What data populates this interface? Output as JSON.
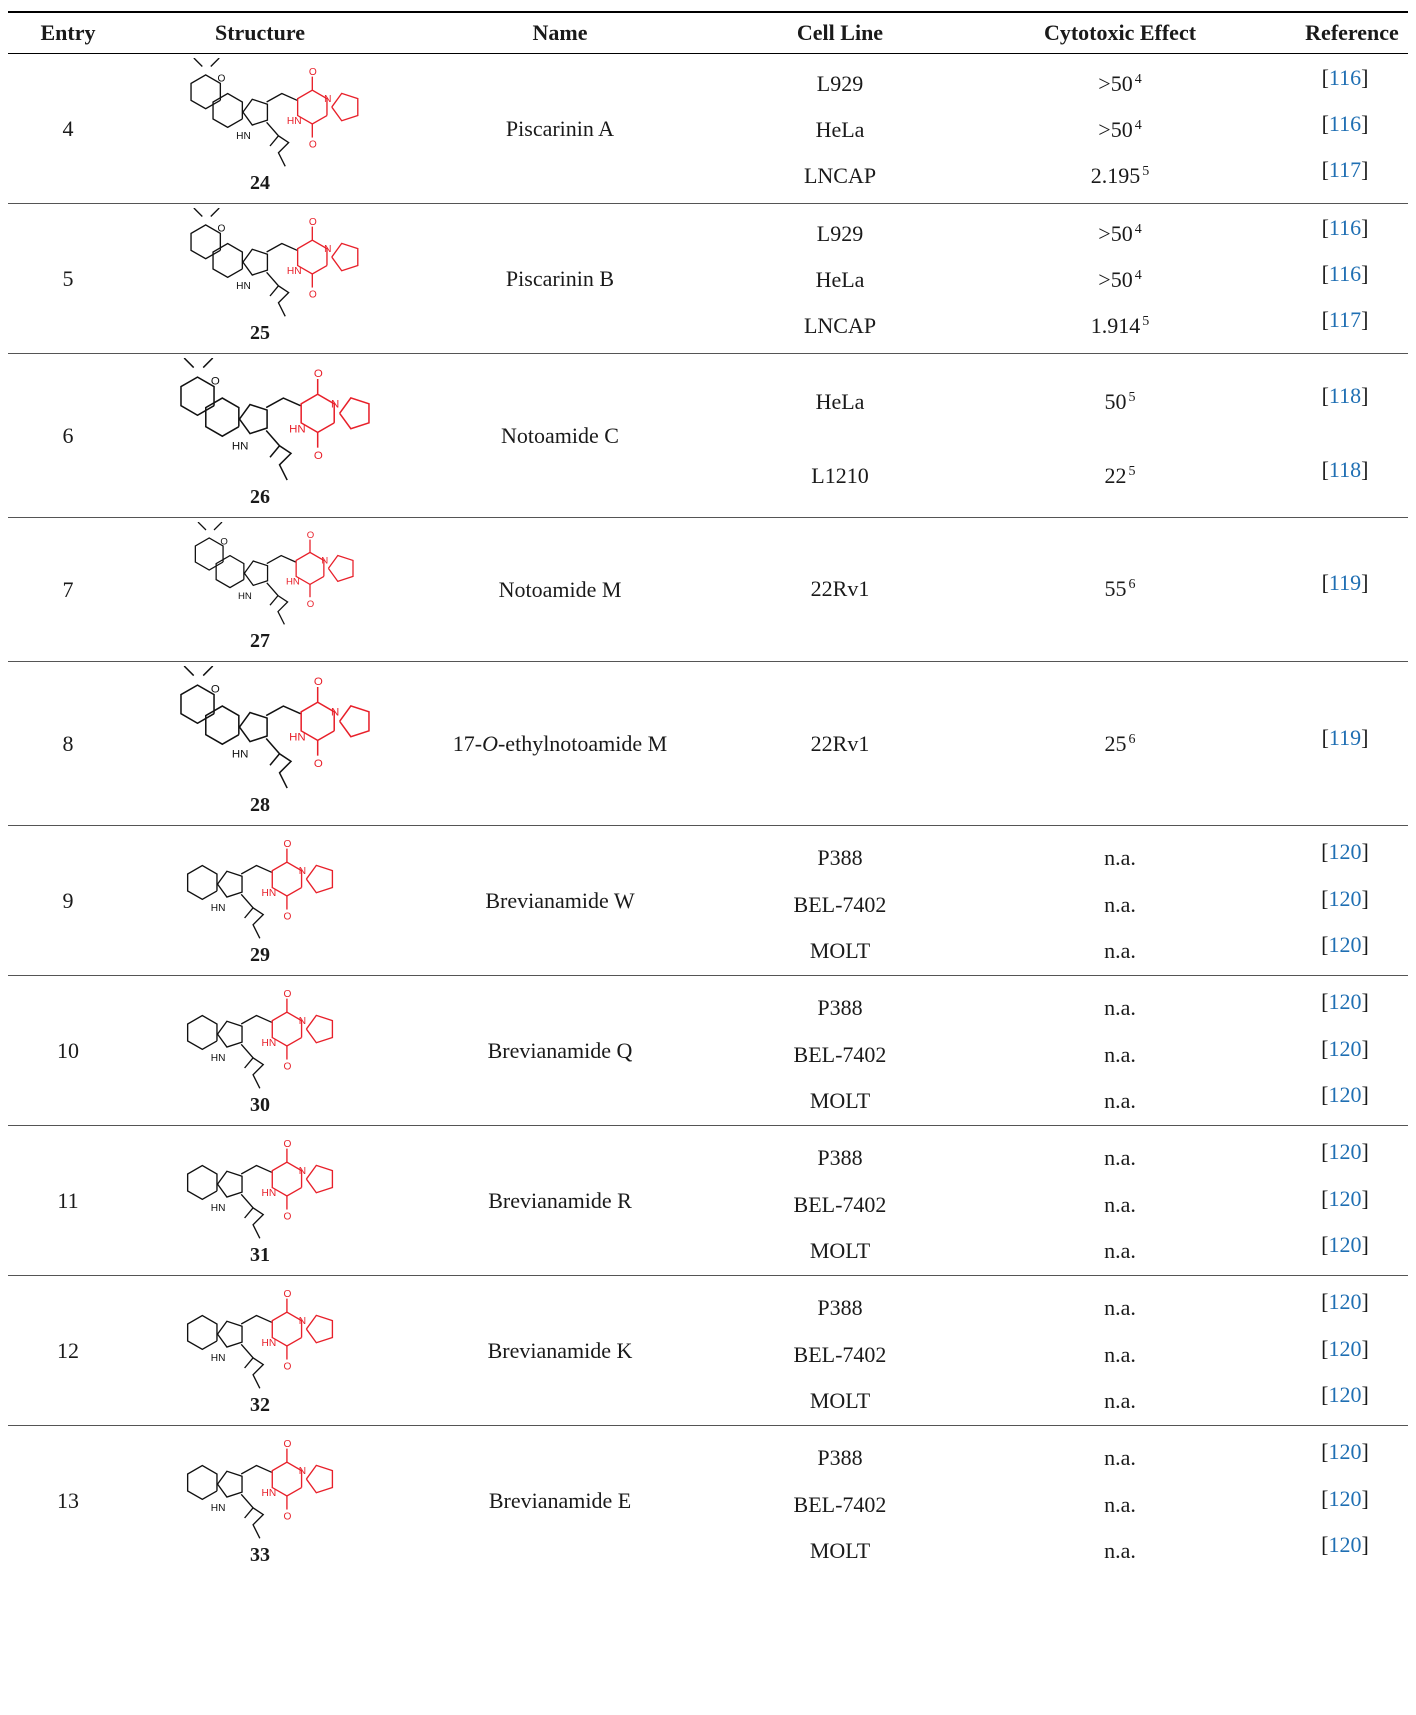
{
  "headers": [
    "Entry",
    "Structure",
    "Name",
    "Cell Line",
    "Cytotoxic Effect",
    "Reference"
  ],
  "rows": [
    {
      "entry": "4",
      "compound": "24",
      "name": "Piscarinin A",
      "cells": [
        {
          "line": "L929",
          "effect": ">50",
          "note": "4",
          "ref": "116"
        },
        {
          "line": "HeLa",
          "effect": ">50",
          "note": "4",
          "ref": "116"
        },
        {
          "line": "LNCAP",
          "effect": "2.195",
          "note": "5",
          "ref": "117"
        }
      ]
    },
    {
      "entry": "5",
      "compound": "25",
      "name": "Piscarinin B",
      "cells": [
        {
          "line": "L929",
          "effect": ">50",
          "note": "4",
          "ref": "116"
        },
        {
          "line": "HeLa",
          "effect": ">50",
          "note": "4",
          "ref": "116"
        },
        {
          "line": "LNCAP",
          "effect": "1.914",
          "note": "5",
          "ref": "117"
        }
      ]
    },
    {
      "entry": "6",
      "compound": "26",
      "name": "Notoamide C",
      "cells": [
        {
          "line": "HeLa",
          "effect": "50",
          "note": "5",
          "ref": "118"
        },
        {
          "line": "L1210",
          "effect": "22",
          "note": "5",
          "ref": "118"
        }
      ]
    },
    {
      "entry": "7",
      "compound": "27",
      "name": "Notoamide M",
      "cells": [
        {
          "line": "22Rv1",
          "effect": "55",
          "note": "6",
          "ref": "119"
        }
      ]
    },
    {
      "entry": "8",
      "compound": "28",
      "name": "17-O-ethylnotoamide M",
      "cells": [
        {
          "line": "22Rv1",
          "effect": "25",
          "note": "6",
          "ref": "119"
        }
      ]
    },
    {
      "entry": "9",
      "compound": "29",
      "name": "Brevianamide W",
      "cells": [
        {
          "line": "P388",
          "effect": "n.a.",
          "note": "",
          "ref": "120"
        },
        {
          "line": "BEL-7402",
          "effect": "n.a.",
          "note": "",
          "ref": "120"
        },
        {
          "line": "MOLT",
          "effect": "n.a.",
          "note": "",
          "ref": "120"
        }
      ]
    },
    {
      "entry": "10",
      "compound": "30",
      "name": "Brevianamide Q",
      "cells": [
        {
          "line": "P388",
          "effect": "n.a.",
          "note": "",
          "ref": "120"
        },
        {
          "line": "BEL-7402",
          "effect": "n.a.",
          "note": "",
          "ref": "120"
        },
        {
          "line": "MOLT",
          "effect": "n.a.",
          "note": "",
          "ref": "120"
        }
      ]
    },
    {
      "entry": "11",
      "compound": "31",
      "name": "Brevianamide R",
      "cells": [
        {
          "line": "P388",
          "effect": "n.a.",
          "note": "",
          "ref": "120"
        },
        {
          "line": "BEL-7402",
          "effect": "n.a.",
          "note": "",
          "ref": "120"
        },
        {
          "line": "MOLT",
          "effect": "n.a.",
          "note": "",
          "ref": "120"
        }
      ]
    },
    {
      "entry": "12",
      "compound": "32",
      "name": "Brevianamide K",
      "cells": [
        {
          "line": "P388",
          "effect": "n.a.",
          "note": "",
          "ref": "120"
        },
        {
          "line": "BEL-7402",
          "effect": "n.a.",
          "note": "",
          "ref": "120"
        },
        {
          "line": "MOLT",
          "effect": "n.a.",
          "note": "",
          "ref": "120"
        }
      ]
    },
    {
      "entry": "13",
      "compound": "33",
      "name": "Brevianamide E",
      "cells": [
        {
          "line": "P388",
          "effect": "n.a.",
          "note": "",
          "ref": "120"
        },
        {
          "line": "BEL-7402",
          "effect": "n.a.",
          "note": "",
          "ref": "120"
        },
        {
          "line": "MOLT",
          "effect": "n.a.",
          "note": "",
          "ref": "120"
        }
      ]
    }
  ],
  "colors": {
    "heterocycle": "#e8202a",
    "link": "#1f6fb3",
    "text": "#1a1a1a"
  }
}
